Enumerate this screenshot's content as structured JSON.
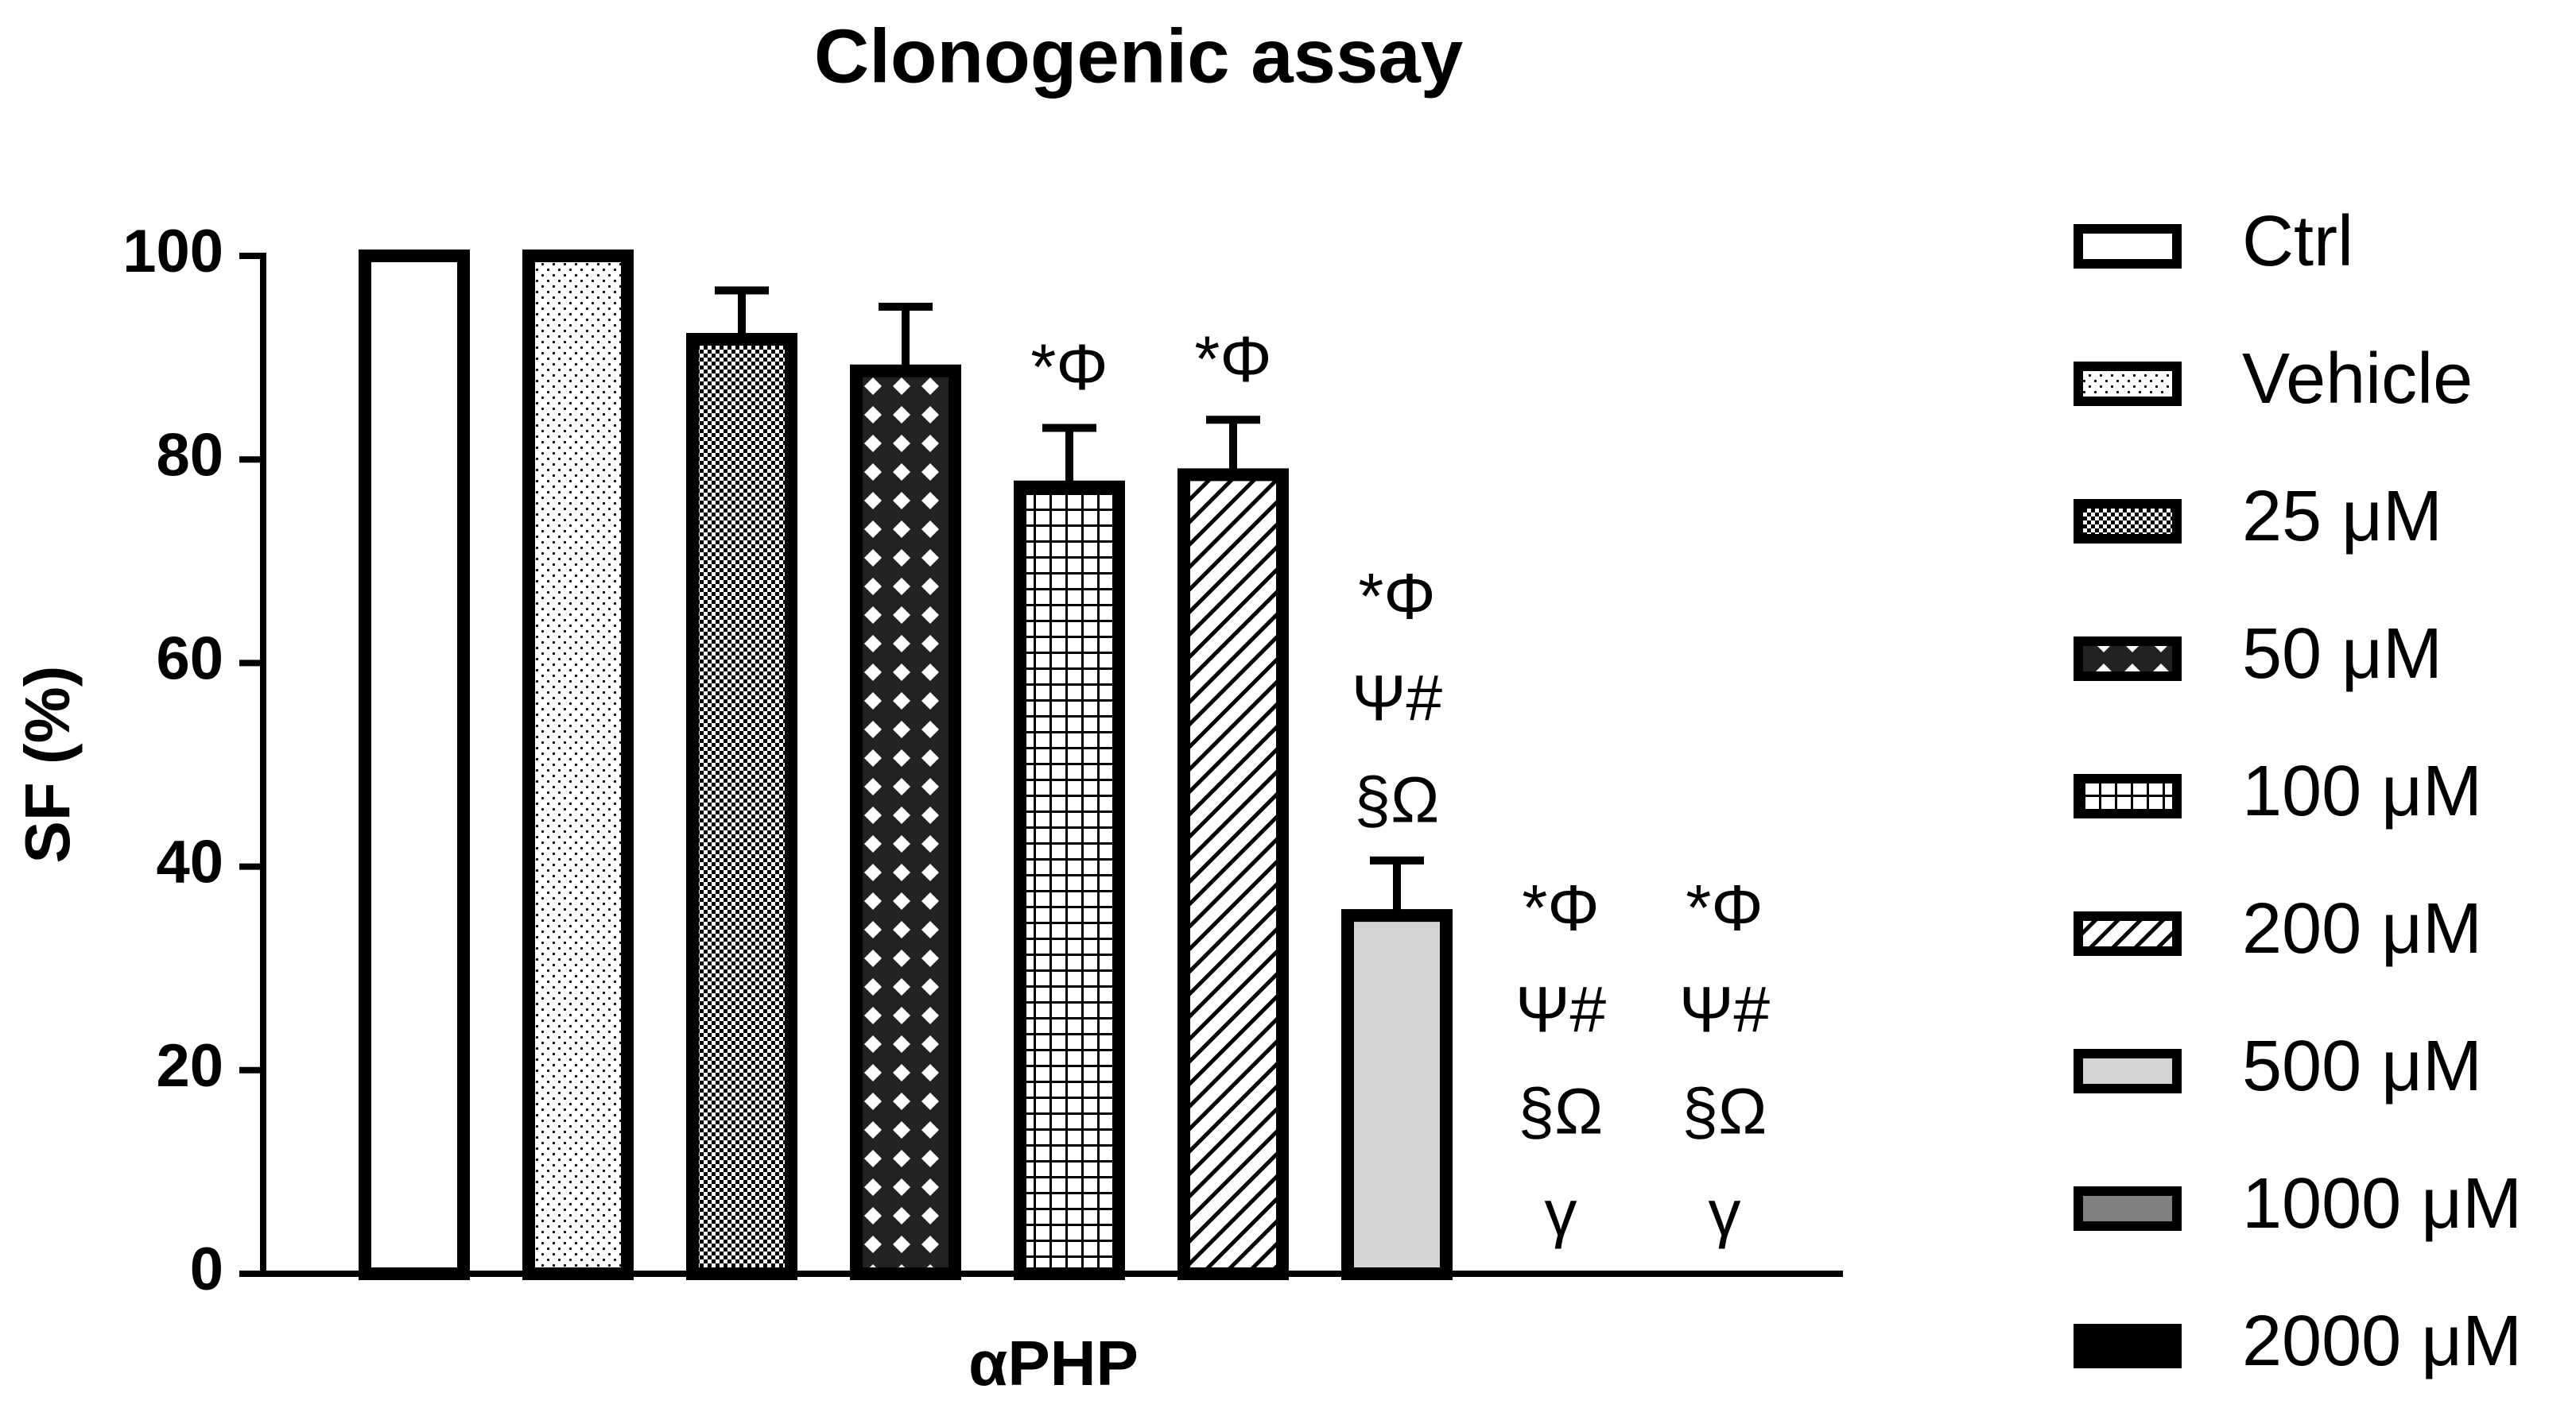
{
  "chart_data": {
    "type": "bar",
    "title": "Clonogenic assay",
    "y_label": "SF (%)",
    "x_label": "αPHP",
    "categories": [
      "Ctrl",
      "Vehicle",
      "25 μM",
      "50 μM",
      "100 μM",
      "200 μM",
      "500 μM",
      "1000 μM",
      "2000 μM"
    ],
    "values": [
      100,
      100,
      91.8,
      88.7,
      77.3,
      78.5,
      35.2,
      0,
      0
    ],
    "errors": [
      null,
      null,
      4.8,
      6.3,
      5.8,
      5.4,
      5.4,
      null,
      null
    ],
    "annotations": [
      null,
      null,
      null,
      null,
      [
        "*Φ"
      ],
      [
        "*Φ"
      ],
      [
        "*Φ",
        "Ψ#",
        "§Ω"
      ],
      [
        "*Φ",
        "Ψ#",
        "§Ω",
        "γ"
      ],
      [
        "*Φ",
        "Ψ#",
        "§Ω",
        "γ"
      ]
    ],
    "ylim": [
      0,
      100
    ],
    "yticks": [
      0,
      20,
      40,
      60,
      80,
      100
    ]
  }
}
